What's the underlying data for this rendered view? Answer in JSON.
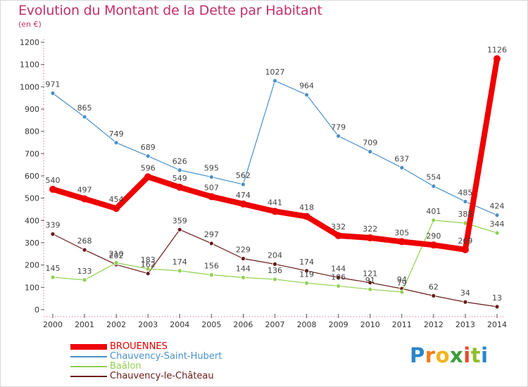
{
  "chart_data": {
    "type": "line",
    "title": "Evolution du Montant de la Dette par Habitant",
    "subtitle": "(en €)",
    "xlabel": "",
    "ylabel": "",
    "x": [
      "2000",
      "2001",
      "2002",
      "2003",
      "2004",
      "2005",
      "2006",
      "2007",
      "2008",
      "2009",
      "2010",
      "2011",
      "2012",
      "2013",
      "2014"
    ],
    "ylim": [
      0,
      1200
    ],
    "yticks": [
      0,
      100,
      200,
      300,
      400,
      500,
      600,
      700,
      800,
      900,
      1000,
      1100,
      1200
    ],
    "grid": false,
    "legend_position": "bottom-left",
    "series": [
      {
        "name": "BROUENNES",
        "color": "#ee0000",
        "values": [
          540,
          497,
          454,
          596,
          549,
          507,
          474,
          441,
          418,
          332,
          322,
          305,
          290,
          269,
          1126
        ]
      },
      {
        "name": "Chauvency-Saint-Hubert",
        "color": "#4a90c8",
        "values": [
          971,
          865,
          749,
          689,
          626,
          595,
          562,
          1027,
          964,
          779,
          709,
          637,
          554,
          485,
          424
        ]
      },
      {
        "name": "Baâlon",
        "color": "#8fd14f",
        "values": [
          145,
          133,
          210,
          183,
          174,
          156,
          144,
          136,
          119,
          106,
          91,
          79,
          401,
          388,
          344
        ]
      },
      {
        "name": "Chauvency-le-Château",
        "color": "#6b1a1a",
        "values": [
          339,
          268,
          202,
          162,
          359,
          297,
          229,
          204,
          174,
          144,
          121,
          94,
          62,
          34,
          13
        ]
      }
    ]
  },
  "logo": {
    "letters": [
      "P",
      "r",
      "o",
      "x",
      "i",
      "t",
      "i"
    ]
  }
}
